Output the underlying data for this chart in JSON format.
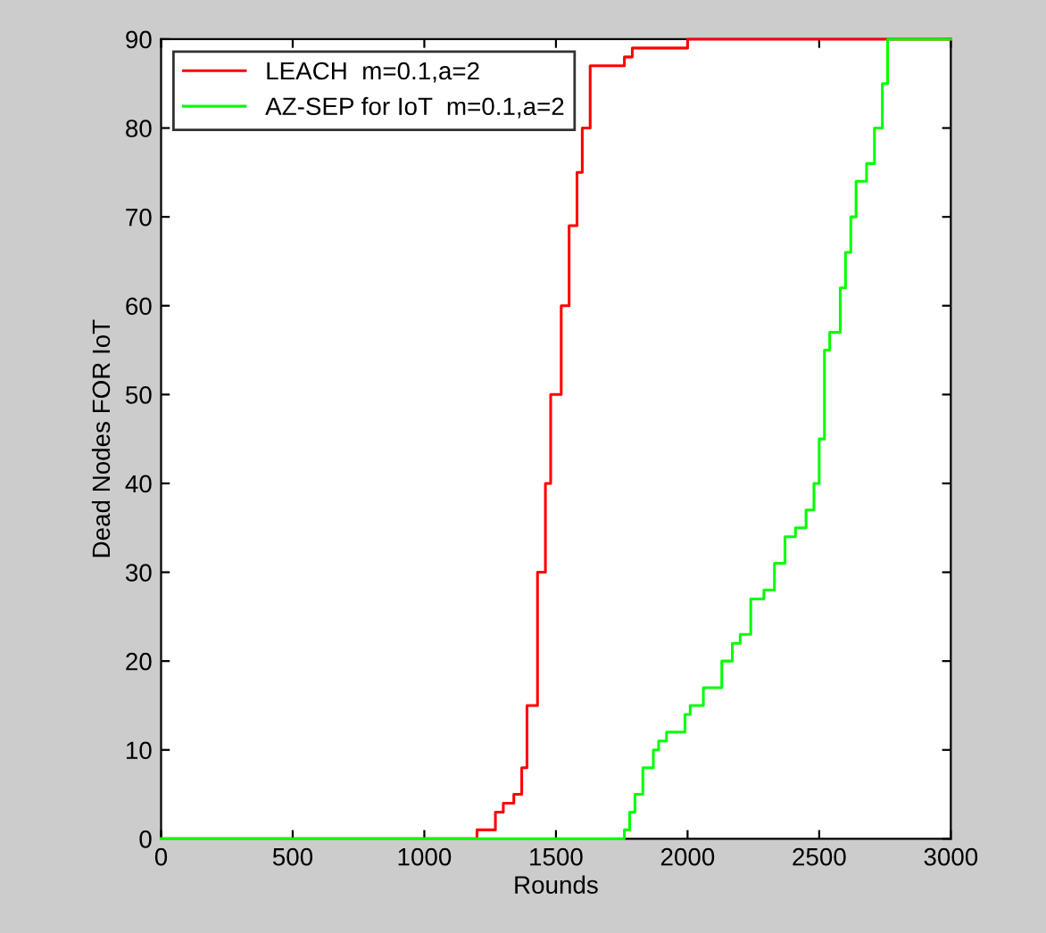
{
  "chart_data": {
    "type": "step",
    "xlabel": "Rounds",
    "ylabel": "Dead Nodes FOR IoT",
    "xlim": [
      0,
      3000
    ],
    "ylim": [
      0,
      90
    ],
    "xticks": [
      0,
      500,
      1000,
      1500,
      2000,
      2500,
      3000
    ],
    "yticks": [
      0,
      10,
      20,
      30,
      40,
      50,
      60,
      70,
      80,
      90
    ],
    "grid": false,
    "legend": "top left",
    "series": [
      {
        "name": "LEACH  m=0.1,a=2",
        "color": "#ff0000",
        "x": [
          0,
          1200,
          1270,
          1300,
          1340,
          1370,
          1390,
          1430,
          1460,
          1480,
          1520,
          1550,
          1580,
          1600,
          1630,
          1760,
          1790,
          2000,
          3000
        ],
        "values": [
          0,
          1,
          3,
          4,
          5,
          8,
          15,
          30,
          40,
          50,
          60,
          69,
          75,
          80,
          87,
          88,
          89,
          90,
          90
        ]
      },
      {
        "name": "AZ-SEP for IoT  m=0.1,a=2",
        "color": "#00ff00",
        "x": [
          0,
          1760,
          1780,
          1800,
          1830,
          1870,
          1890,
          1920,
          1990,
          2010,
          2060,
          2130,
          2170,
          2200,
          2240,
          2290,
          2330,
          2370,
          2410,
          2450,
          2480,
          2500,
          2520,
          2540,
          2580,
          2600,
          2620,
          2640,
          2680,
          2710,
          2740,
          2760,
          2780,
          3000
        ],
        "values": [
          0,
          1,
          3,
          5,
          8,
          10,
          11,
          12,
          14,
          15,
          17,
          20,
          22,
          23,
          27,
          28,
          31,
          34,
          35,
          37,
          40,
          45,
          55,
          57,
          62,
          66,
          70,
          74,
          76,
          80,
          85,
          90,
          90,
          90
        ]
      }
    ]
  }
}
